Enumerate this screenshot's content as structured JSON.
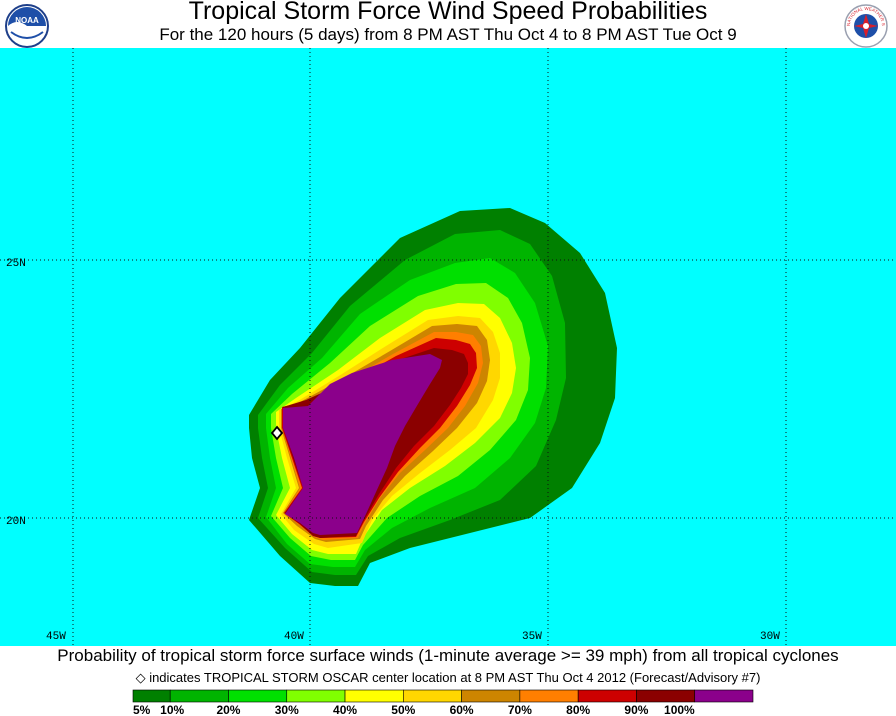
{
  "header": {
    "title": "Tropical Storm Force Wind Speed Probabilities",
    "subtitle": "For the 120 hours (5 days) from 8 PM AST Thu Oct 4 to 8 PM AST Tue Oct 9",
    "left_logo": {
      "icon": "noaa-logo-icon",
      "text": "NOAA"
    },
    "right_logo": {
      "icon": "nws-logo-icon",
      "text": "NATIONAL WEATHER SERVICE"
    }
  },
  "map": {
    "ocean_color": "#00FFFF",
    "grid_style": "dotted",
    "lat_labels": [
      "25N",
      "20N"
    ],
    "lon_labels": [
      "45W",
      "40W",
      "35W",
      "30W"
    ],
    "storm_marker": {
      "icon": "diamond-icon"
    }
  },
  "footer": {
    "caption": "Probability of tropical storm force surface winds (1-minute average >= 39 mph) from all tropical cyclones",
    "marker_symbol": "◇",
    "marker_note": "indicates TROPICAL STORM OSCAR center location at 8 PM AST Thu Oct 4 2012 (Forecast/Advisory #7)"
  },
  "legend": {
    "bins": [
      {
        "color": "#008000"
      },
      {
        "color": "#00B400"
      },
      {
        "color": "#00E000"
      },
      {
        "color": "#80FF00"
      },
      {
        "color": "#FFFF00"
      },
      {
        "color": "#FFD700"
      },
      {
        "color": "#CD8500"
      },
      {
        "color": "#FF7F00"
      },
      {
        "color": "#CD0000"
      },
      {
        "color": "#8B0000"
      },
      {
        "color": "#8B008B"
      }
    ],
    "labels": [
      "5%",
      "10%",
      "20%",
      "30%",
      "40%",
      "50%",
      "60%",
      "70%",
      "80%",
      "90%",
      "100%"
    ]
  }
}
